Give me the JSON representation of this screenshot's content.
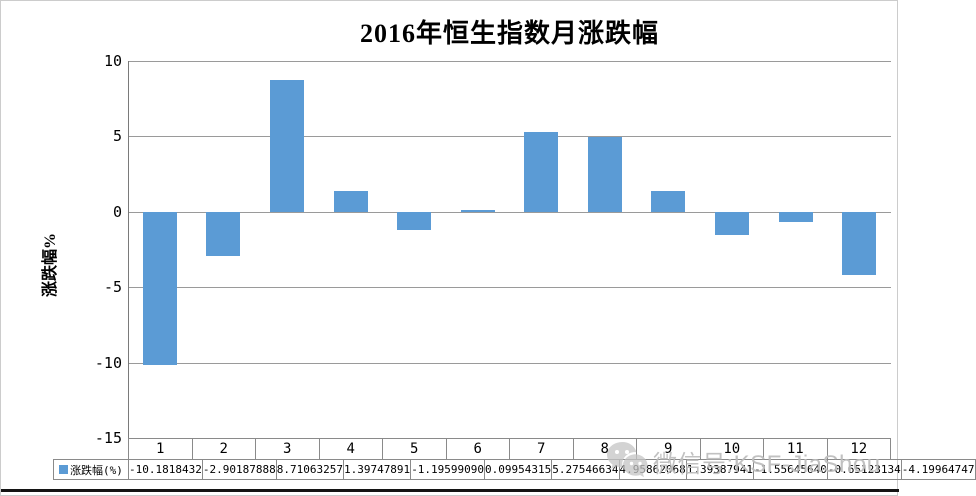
{
  "title": "2016年恒生指数月涨跌幅",
  "y_axis_title": "涨跌幅%",
  "legend": {
    "swatch_color": "#5B9BD5",
    "label": "涨跌幅(%)"
  },
  "watermark": {
    "text": "微信号:KSF-JiaShou",
    "icon": "wechat-logo"
  },
  "chart_data": {
    "type": "bar",
    "title": "2016年恒生指数月涨跌幅",
    "ylabel": "涨跌幅%",
    "xlabel": "",
    "ylim": [
      -15,
      10
    ],
    "yticks": [
      10,
      5,
      0,
      -5,
      -10,
      -15
    ],
    "grid": true,
    "bar_color": "#5B9BD5",
    "gridline_color": "#9a9a9a",
    "legend_position": "data-table-bottom",
    "categories": [
      "1",
      "2",
      "3",
      "4",
      "5",
      "6",
      "7",
      "8",
      "9",
      "10",
      "11",
      "12"
    ],
    "series": [
      {
        "name": "涨跌幅(%)",
        "values": [
          -10.1818432,
          -2.90187888,
          8.71063257,
          1.39747891,
          -1.1959909,
          0.09954315,
          5.27546634,
          4.95862068,
          1.39387941,
          -1.5564564,
          -0.65123134,
          -4.19964747
        ],
        "value_labels": [
          "-10.1818432",
          "-2.90187888",
          "8.71063257",
          "1.39747891",
          "-1.19599090",
          "0.09954315",
          "5.27546634",
          "4.95862068",
          "1.39387941",
          "-1.55645640",
          "-0.65123134",
          "-4.19964747"
        ]
      }
    ]
  }
}
